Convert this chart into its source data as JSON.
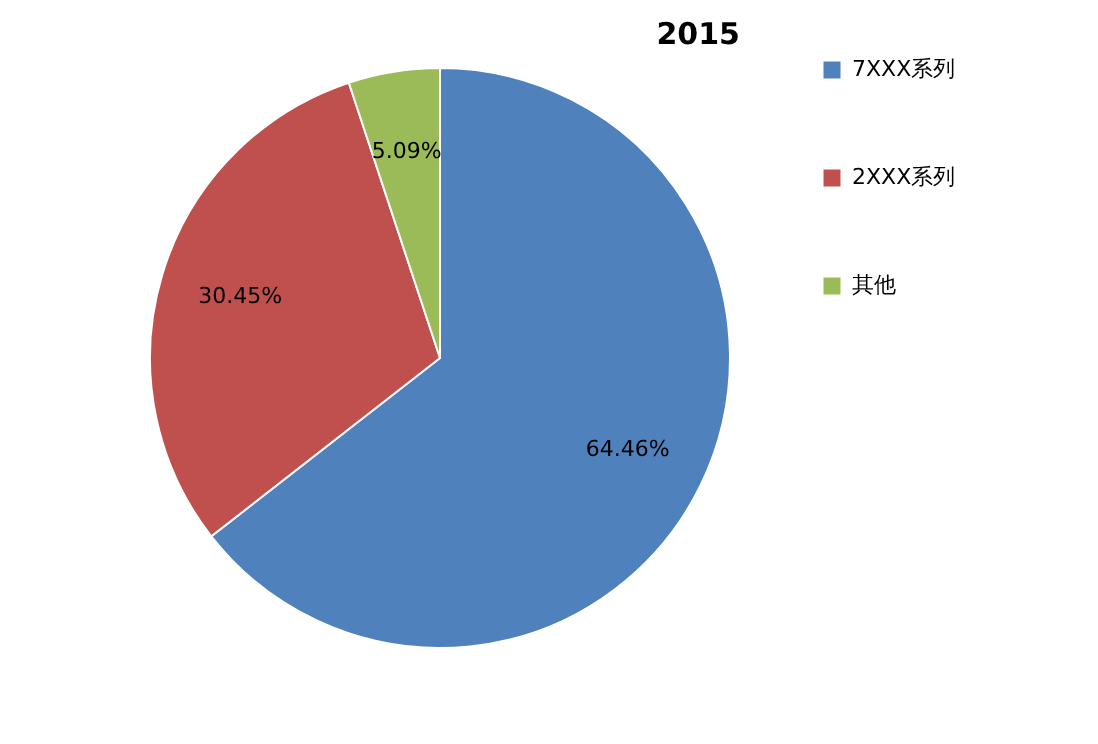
{
  "chart_data": {
    "type": "pie",
    "title": "2015",
    "categories": [
      "7XXX系列",
      "2XXX系列",
      "其他"
    ],
    "values": [
      64.46,
      30.45,
      5.09
    ],
    "colors": [
      "#4f81bd",
      "#c0504d",
      "#9bbb59"
    ],
    "value_labels": [
      "64.46%",
      "30.45%",
      "5.09%"
    ],
    "legend": "right"
  }
}
